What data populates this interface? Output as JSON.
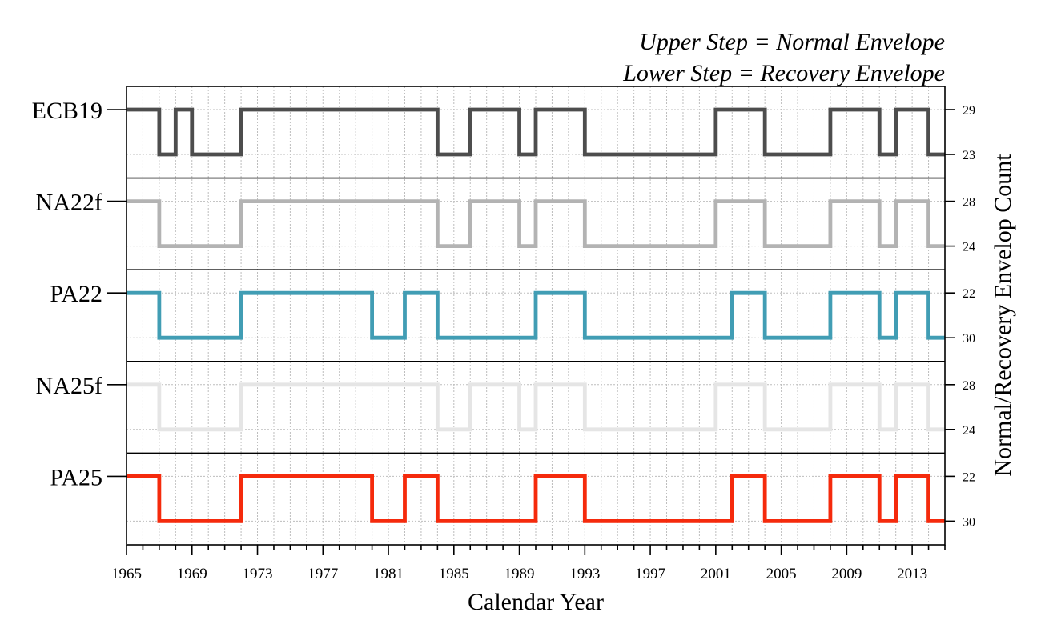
{
  "chart_data": {
    "type": "line",
    "step": "post",
    "annotations": [
      "Upper Step = Normal Envelope",
      "Lower Step = Recovery Envelope"
    ],
    "xlabel": "Calendar Year",
    "ylabel": "Normal/Recovery Envelop Count",
    "xlim": [
      1965,
      2015
    ],
    "x_ticks": [
      1965,
      1969,
      1973,
      1977,
      1981,
      1985,
      1989,
      1993,
      1997,
      2001,
      2005,
      2009,
      2013
    ],
    "x_minor_step": 1,
    "grid": true,
    "series": [
      {
        "name": "ECB19",
        "color": "#4d4d4d",
        "upper_label": "29",
        "lower_label": "23",
        "changes": [
          [
            1965,
            "upper"
          ],
          [
            1967,
            "lower"
          ],
          [
            1968,
            "upper"
          ],
          [
            1969,
            "lower"
          ],
          [
            1972,
            "upper"
          ],
          [
            1984,
            "lower"
          ],
          [
            1986,
            "upper"
          ],
          [
            1989,
            "lower"
          ],
          [
            1990,
            "upper"
          ],
          [
            1993,
            "lower"
          ],
          [
            2001,
            "upper"
          ],
          [
            2004,
            "lower"
          ],
          [
            2008,
            "upper"
          ],
          [
            2011,
            "lower"
          ],
          [
            2012,
            "upper"
          ],
          [
            2014,
            "lower"
          ],
          [
            2015,
            "lower"
          ]
        ]
      },
      {
        "name": "NA22f",
        "color": "#b3b3b3",
        "upper_label": "28",
        "lower_label": "24",
        "changes": [
          [
            1965,
            "upper"
          ],
          [
            1967,
            "lower"
          ],
          [
            1972,
            "upper"
          ],
          [
            1984,
            "lower"
          ],
          [
            1986,
            "upper"
          ],
          [
            1989,
            "lower"
          ],
          [
            1990,
            "upper"
          ],
          [
            1993,
            "lower"
          ],
          [
            2001,
            "upper"
          ],
          [
            2004,
            "lower"
          ],
          [
            2008,
            "upper"
          ],
          [
            2011,
            "lower"
          ],
          [
            2012,
            "upper"
          ],
          [
            2014,
            "lower"
          ],
          [
            2015,
            "lower"
          ]
        ]
      },
      {
        "name": "PA22",
        "color": "#419db4",
        "upper_label": "22",
        "lower_label": "30",
        "changes": [
          [
            1965,
            "upper"
          ],
          [
            1967,
            "lower"
          ],
          [
            1972,
            "upper"
          ],
          [
            1980,
            "lower"
          ],
          [
            1982,
            "upper"
          ],
          [
            1984,
            "lower"
          ],
          [
            1990,
            "upper"
          ],
          [
            1993,
            "lower"
          ],
          [
            2002,
            "upper"
          ],
          [
            2004,
            "lower"
          ],
          [
            2008,
            "upper"
          ],
          [
            2011,
            "lower"
          ],
          [
            2012,
            "upper"
          ],
          [
            2014,
            "lower"
          ],
          [
            2015,
            "lower"
          ]
        ]
      },
      {
        "name": "NA25f",
        "color": "#e5e5e5",
        "upper_label": "28",
        "lower_label": "24",
        "changes": [
          [
            1965,
            "upper"
          ],
          [
            1967,
            "lower"
          ],
          [
            1972,
            "upper"
          ],
          [
            1984,
            "lower"
          ],
          [
            1986,
            "upper"
          ],
          [
            1989,
            "lower"
          ],
          [
            1990,
            "upper"
          ],
          [
            1993,
            "lower"
          ],
          [
            2001,
            "upper"
          ],
          [
            2004,
            "lower"
          ],
          [
            2008,
            "upper"
          ],
          [
            2011,
            "lower"
          ],
          [
            2012,
            "upper"
          ],
          [
            2014,
            "lower"
          ],
          [
            2015,
            "lower"
          ]
        ]
      },
      {
        "name": "PA25",
        "color": "#f52a0c",
        "upper_label": "22",
        "lower_label": "30",
        "changes": [
          [
            1965,
            "upper"
          ],
          [
            1967,
            "lower"
          ],
          [
            1972,
            "upper"
          ],
          [
            1980,
            "lower"
          ],
          [
            1982,
            "upper"
          ],
          [
            1984,
            "lower"
          ],
          [
            1990,
            "upper"
          ],
          [
            1993,
            "lower"
          ],
          [
            2002,
            "upper"
          ],
          [
            2004,
            "lower"
          ],
          [
            2008,
            "upper"
          ],
          [
            2011,
            "lower"
          ],
          [
            2012,
            "upper"
          ],
          [
            2014,
            "lower"
          ],
          [
            2015,
            "lower"
          ]
        ]
      }
    ]
  }
}
